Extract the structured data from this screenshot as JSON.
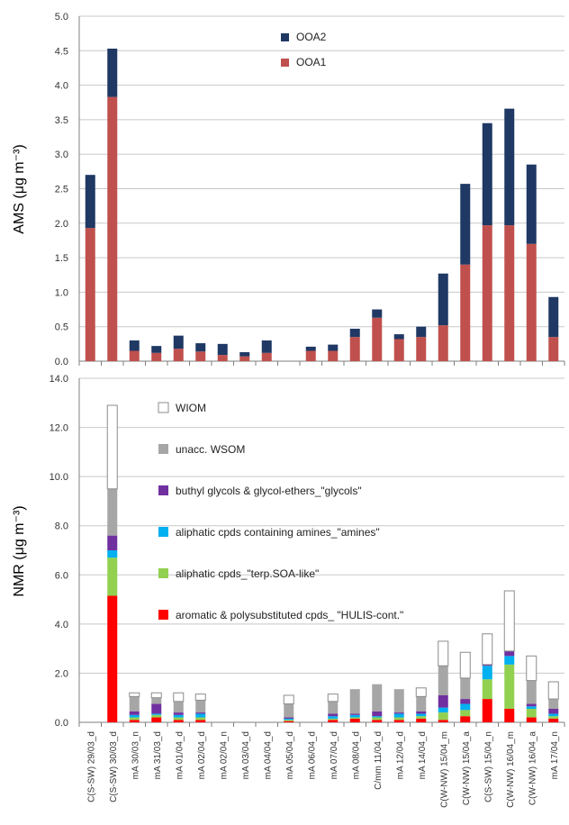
{
  "chart_data": [
    {
      "type": "bar",
      "stacked": true,
      "ylabel": "AMS (μg m⁻³)",
      "ylim": [
        0,
        5
      ],
      "yticks": [
        "0.0",
        "0.5",
        "1.0",
        "1.5",
        "2.0",
        "2.5",
        "3.0",
        "3.5",
        "4.0",
        "4.5",
        "5.0"
      ],
      "grid": true,
      "legend_position": "top-center",
      "series": [
        {
          "name": "OOA1",
          "color": "#c0504d",
          "values": [
            1.93,
            3.83,
            0.15,
            0.12,
            0.18,
            0.14,
            0.09,
            0.07,
            0.12,
            null,
            0.15,
            0.15,
            0.35,
            0.63,
            0.32,
            0.35,
            0.52,
            1.4,
            1.97,
            1.97,
            1.7,
            0.35
          ]
        },
        {
          "name": "OOA2",
          "color": "#1f3864",
          "values": [
            0.77,
            0.7,
            0.15,
            0.1,
            0.19,
            0.12,
            0.16,
            0.06,
            0.18,
            null,
            0.06,
            0.09,
            0.12,
            0.12,
            0.07,
            0.15,
            0.75,
            1.17,
            1.48,
            1.69,
            1.15,
            0.58
          ]
        }
      ],
      "legend_order": [
        "OOA2",
        "OOA1"
      ]
    },
    {
      "type": "bar",
      "stacked": true,
      "ylabel": "NMR (μg m⁻³)",
      "ylim": [
        0,
        14
      ],
      "yticks": [
        "0.0",
        "2.0",
        "4.0",
        "6.0",
        "8.0",
        "10.0",
        "12.0",
        "14.0"
      ],
      "grid": true,
      "legend_position": "top-left",
      "categories": [
        "C(S-SW) 29/03_d",
        "C(S-SW) 30/03_d",
        "mA 30/03_n",
        "mA 31/03_d",
        "mA 01/04_d",
        "mA 02/04_d",
        "mA 02/04_n",
        "mA 03/04_d",
        "mA 04/04_d",
        "mA 05/04_d",
        "mA 06/04_d",
        "mA 07/04_d",
        "mA 08/04_d",
        "C/mm 11/04_d",
        "mA 12/04_d",
        "mA 14/04_d",
        "C(W-NW) 15/04_m",
        "C(W-NW) 15/04_a",
        "C(S-SW) 15/04_n",
        "C(W-NW) 16/04_m",
        "C(W-NW) 16/04_a",
        "mA 17/04_n"
      ],
      "series": [
        {
          "name": "aromatic & polysubstituted cpds_ \"HULIS-cont.\"",
          "color": "#ff0000",
          "values": [
            null,
            5.15,
            0.1,
            0.2,
            0.1,
            0.1,
            null,
            null,
            null,
            0.05,
            null,
            0.1,
            0.15,
            0.1,
            0.1,
            0.15,
            0.1,
            0.25,
            0.95,
            0.55,
            0.2,
            0.15
          ]
        },
        {
          "name": "aliphatic cpds_\"terp.SOA-like\"",
          "color": "#92d050",
          "values": [
            null,
            1.55,
            0.1,
            0.1,
            0.1,
            0.1,
            null,
            null,
            null,
            0.05,
            null,
            0.05,
            0.05,
            0.1,
            0.1,
            0.1,
            0.3,
            0.25,
            0.8,
            1.8,
            0.35,
            0.1
          ]
        },
        {
          "name": "aliphatic cpds containing amines_\"amines\"",
          "color": "#00b0f0",
          "values": [
            null,
            0.3,
            0.1,
            0.05,
            0.1,
            0.15,
            null,
            null,
            null,
            0.05,
            null,
            0.1,
            0.1,
            0.05,
            0.15,
            0.1,
            0.2,
            0.25,
            0.55,
            0.35,
            0.1,
            0.1
          ]
        },
        {
          "name": "buthyl glycols & glycol-ethers_\"glycols\"",
          "color": "#7030a0",
          "values": [
            null,
            0.6,
            0.15,
            0.4,
            0.1,
            0.05,
            null,
            null,
            null,
            0.05,
            null,
            0.1,
            0.05,
            0.2,
            0.05,
            0.1,
            0.5,
            0.2,
            0.05,
            0.2,
            0.1,
            0.2
          ]
        },
        {
          "name": "unacc. WSOM",
          "color": "#a6a6a6",
          "values": [
            null,
            1.9,
            0.6,
            0.25,
            0.45,
            0.5,
            null,
            null,
            null,
            0.55,
            null,
            0.5,
            1.0,
            1.1,
            0.95,
            0.6,
            1.2,
            0.85,
            null,
            null,
            0.95,
            0.4
          ]
        },
        {
          "name": "WIOM",
          "color": "#ffffff",
          "values": [
            null,
            3.4,
            0.15,
            0.2,
            0.35,
            0.25,
            null,
            null,
            null,
            0.35,
            null,
            0.3,
            null,
            null,
            null,
            0.35,
            1.0,
            1.05,
            1.25,
            2.45,
            1.0,
            0.7
          ]
        }
      ],
      "legend_order": [
        "WIOM",
        "unacc. WSOM",
        "buthyl glycols & glycol-ethers_\"glycols\"",
        "aliphatic cpds containing amines_\"amines\"",
        "aliphatic cpds_\"terp.SOA-like\"",
        "aromatic & polysubstituted cpds_ \"HULIS-cont.\""
      ]
    }
  ]
}
